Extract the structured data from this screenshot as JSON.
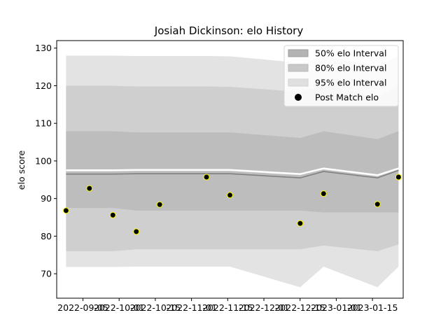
{
  "chart_data": {
    "type": "line",
    "title": "Josiah Dickinson: elo History",
    "xlabel": "",
    "ylabel": "elo score",
    "ylim": [
      63.5,
      132
    ],
    "xlim": [
      "2022-08-28",
      "2023-01-23"
    ],
    "y_ticks": [
      70,
      80,
      90,
      100,
      110,
      120,
      130
    ],
    "x_ticks": [
      "2022-09-05",
      "2022-10-01",
      "2022-10-15",
      "2022-11-01",
      "2022-11-15",
      "2022-12-01",
      "2022-12-15",
      "2023-01-01",
      "2023-01-15"
    ],
    "grid": false,
    "legend_position": "top-right",
    "x": [
      "2022-09-01",
      "2022-09-11",
      "2022-09-21",
      "2022-10-01",
      "2022-10-11",
      "2022-10-31",
      "2022-11-10",
      "2022-12-10",
      "2022-12-20",
      "2023-01-12",
      "2023-01-21"
    ],
    "series": [
      {
        "name": "Post Match elo",
        "kind": "points",
        "color": "#000000",
        "edge_color": "#ffff00",
        "values": [
          86.8,
          92.7,
          85.6,
          81.2,
          88.4,
          95.7,
          90.9,
          83.4,
          91.3,
          88.5,
          95.7
        ]
      },
      {
        "name": "",
        "kind": "mean-line",
        "color": "#808080",
        "values": [
          96.5,
          96.5,
          96.5,
          96.6,
          96.6,
          96.6,
          96.6,
          95.5,
          97.2,
          95.5,
          97.5
        ]
      },
      {
        "name": "",
        "kind": "upper-line",
        "color": "#ffffff",
        "values": [
          97.5,
          97.5,
          97.5,
          97.6,
          97.6,
          97.6,
          97.6,
          96.5,
          98.0,
          96.2,
          98.0
        ]
      }
    ],
    "bands": [
      {
        "name": "95% elo Interval",
        "color": "#e3e3e3",
        "lower": [
          71.8,
          71.8,
          71.8,
          71.9,
          71.9,
          71.9,
          71.9,
          66.4,
          71.9,
          66.4,
          71.9
        ],
        "upper": [
          128.0,
          128.0,
          128.0,
          127.9,
          127.9,
          127.9,
          127.8,
          126.1,
          127.9,
          125.2,
          127.9
        ]
      },
      {
        "name": "80% elo Interval",
        "color": "#cfcfcf",
        "lower": [
          76.0,
          76.0,
          76.0,
          76.5,
          76.5,
          76.5,
          76.5,
          76.5,
          77.5,
          76.0,
          77.8
        ],
        "upper": [
          120.0,
          120.0,
          120.0,
          119.8,
          119.8,
          119.8,
          119.7,
          118.4,
          120.0,
          117.0,
          120.0
        ]
      },
      {
        "name": "50% elo Interval",
        "color": "#bdbdbd",
        "lower": [
          87.5,
          87.5,
          87.5,
          86.8,
          86.8,
          86.8,
          86.8,
          86.8,
          86.3,
          86.3,
          86.3
        ],
        "upper": [
          107.9,
          107.9,
          107.9,
          107.6,
          107.6,
          107.6,
          107.6,
          106.1,
          107.9,
          105.8,
          107.9
        ]
      }
    ],
    "legend": [
      {
        "label": "50% elo Interval",
        "swatch": "box",
        "color": "#b3b3b3",
        "edge": "#9e9e9e"
      },
      {
        "label": "80% elo Interval",
        "swatch": "box",
        "color": "#c8c8c8",
        "edge": "#b8b8b8"
      },
      {
        "label": "95% elo Interval",
        "swatch": "box",
        "color": "#e0e0e0",
        "edge": "#d2d2d2"
      },
      {
        "label": "Post Match elo",
        "swatch": "dot",
        "color": "#000000"
      }
    ]
  }
}
